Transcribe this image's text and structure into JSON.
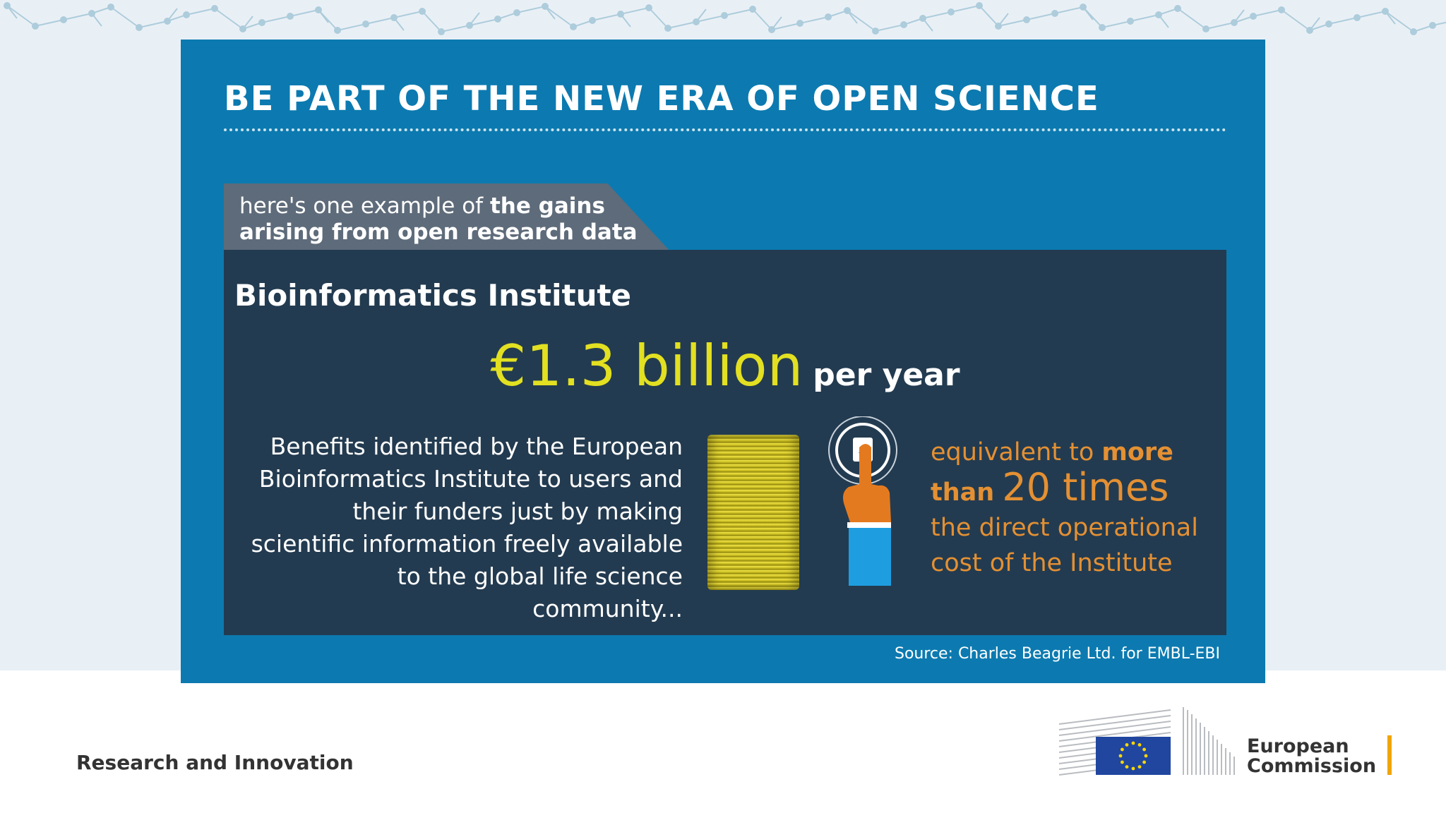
{
  "slide": {
    "headline": "BE PART OF THE NEW ERA OF OPEN SCIENCE",
    "tab": {
      "prefix": "here's one example of ",
      "bold_line1": "the gains",
      "bold_line2": "arising from open research data"
    },
    "card": {
      "title": "Bioinformatics Institute",
      "amount": "€1.3 billion",
      "amount_suffix": "per year",
      "benefits_text": "Benefits identified by the European Bioinformatics Institute to users and their funders just by making scientific information freely available to the global life science community...",
      "equivalent": {
        "prefix": "equivalent to ",
        "bold_more": "more",
        "bold_than": "than",
        "big_value": "20 times",
        "rest_line1": "the direct operational",
        "rest_line2": "cost of the Institute"
      }
    },
    "source": "Source: Charles Beagrie Ltd. for EMBL-EBI"
  },
  "footer": {
    "label": "Research and Innovation",
    "logo_line1": "European",
    "logo_line2": "Commission"
  },
  "colors": {
    "panel": "#0c7ab0",
    "card": "#233b50",
    "tab": "#5e6b7a",
    "amount": "#e2e021",
    "accent_orange": "#e49033",
    "eu_blue": "#2046a0",
    "eu_star": "#ffd700",
    "logo_bar": "#f0a500"
  },
  "icons": {
    "coins": "coin-stack-icon",
    "touch": "finger-touch-icon",
    "pattern": "network-pattern-icon",
    "flag": "eu-flag-icon"
  }
}
